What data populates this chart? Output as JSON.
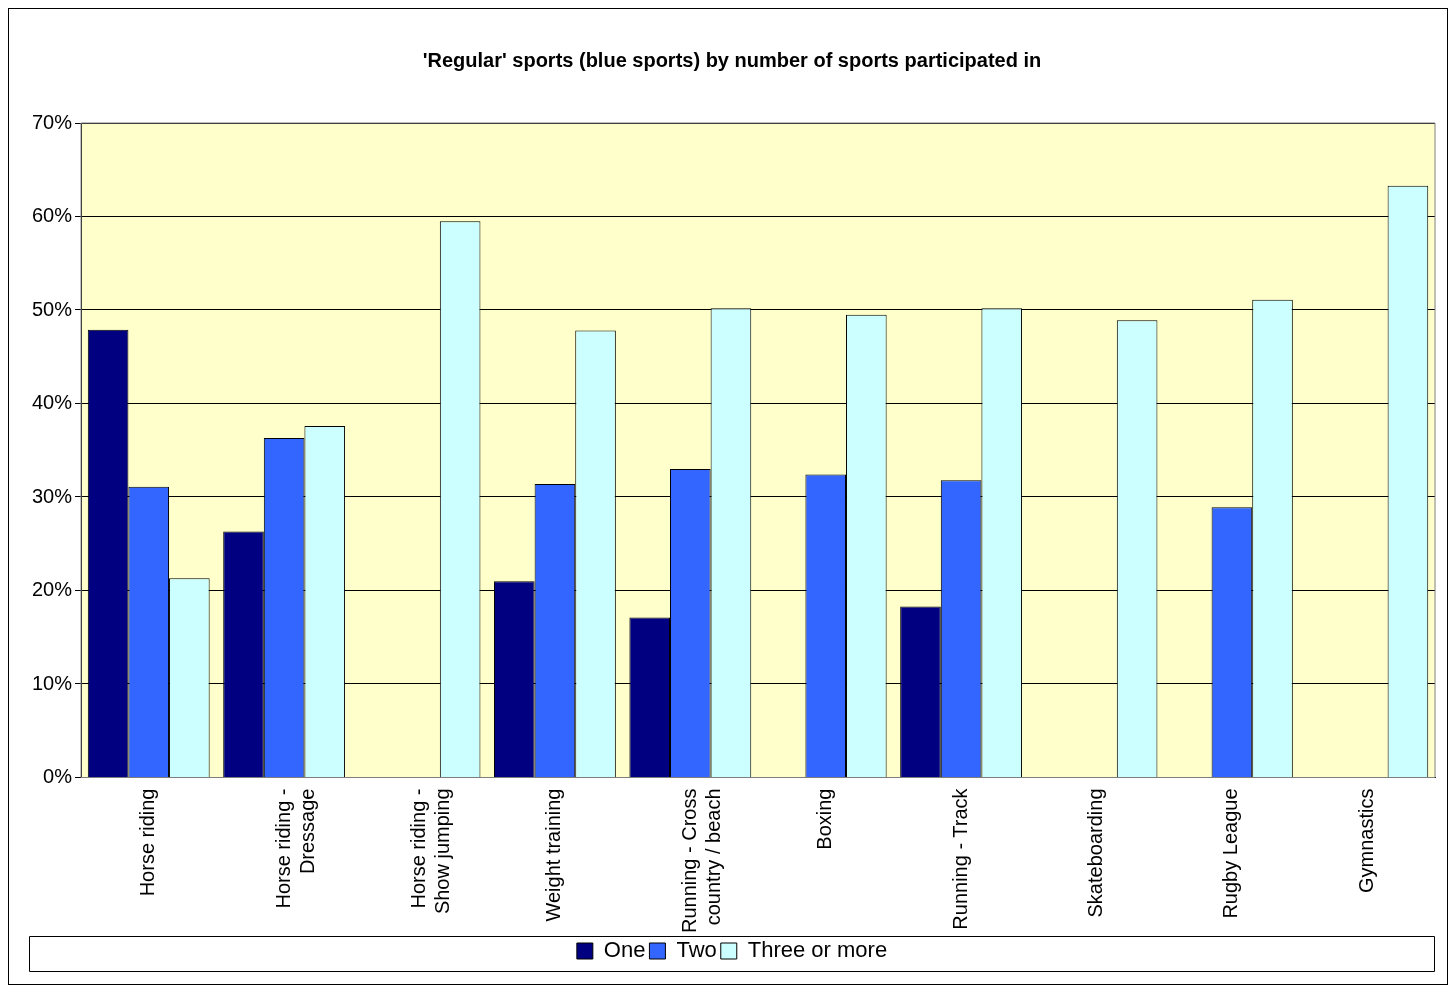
{
  "chart_data": {
    "type": "bar",
    "title": "'Regular' sports (blue sports) by number of sports participated in",
    "categories": [
      "Horse riding",
      "Horse riding - Dressage",
      "Horse riding - Show jumping",
      "Weight training",
      "Running - Cross country / beach",
      "Boxing",
      "Running - Track",
      "Skateboarding",
      "Rugby League",
      "Gymnastics"
    ],
    "series": [
      {
        "name": "One",
        "color": "#000080",
        "values": [
          47.9,
          26.3,
          null,
          21.0,
          17.1,
          null,
          18.3,
          null,
          null,
          null
        ]
      },
      {
        "name": "Two",
        "color": "#3366ff",
        "values": [
          31.1,
          36.3,
          null,
          31.4,
          33.0,
          32.4,
          31.8,
          null,
          28.9,
          null
        ]
      },
      {
        "name": "Three or more",
        "color": "#ccffff",
        "values": [
          21.3,
          37.6,
          59.5,
          47.8,
          50.2,
          49.5,
          50.2,
          48.9,
          51.1,
          63.3
        ]
      }
    ],
    "ylim": [
      0,
      70
    ],
    "yticks": [
      {
        "value": 0,
        "label": "0%"
      },
      {
        "value": 10,
        "label": "10%"
      },
      {
        "value": 20,
        "label": "20%"
      },
      {
        "value": 30,
        "label": "30%"
      },
      {
        "value": 40,
        "label": "40%"
      },
      {
        "value": 50,
        "label": "50%"
      },
      {
        "value": 60,
        "label": "60%"
      },
      {
        "value": 70,
        "label": "70%"
      }
    ],
    "grid": "y",
    "legend": "bottom"
  }
}
